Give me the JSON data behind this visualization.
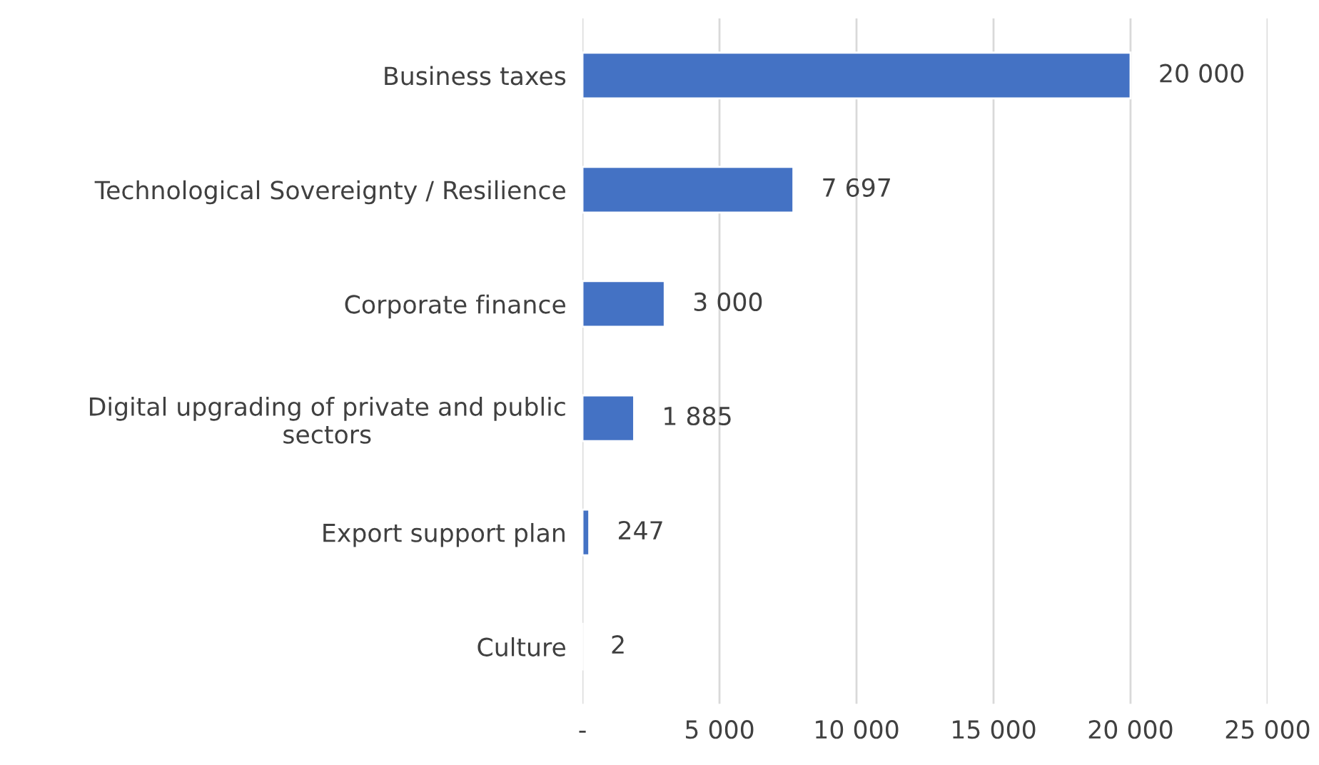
{
  "chart_data": {
    "type": "bar",
    "orientation": "horizontal",
    "categories": [
      "Business taxes",
      "Technological Sovereignty / Resilience",
      "Corporate finance",
      "Digital upgrading of private and public\nsectors",
      "Export support plan",
      "Culture"
    ],
    "values": [
      20000,
      7697,
      3000,
      1885,
      247,
      2
    ],
    "value_labels": [
      "20 000",
      "7 697",
      "3 000",
      "1 885",
      "247",
      "2"
    ],
    "color": "#4472c4",
    "xlim": [
      0,
      25000
    ],
    "xticks": [
      {
        "value": 0,
        "label": "-"
      },
      {
        "value": 5000,
        "label": "5 000"
      },
      {
        "value": 10000,
        "label": "10 000"
      },
      {
        "value": 15000,
        "label": "15 000"
      },
      {
        "value": 20000,
        "label": "20 000"
      },
      {
        "value": 25000,
        "label": "25 000"
      }
    ],
    "grid": "x",
    "legend": false
  }
}
